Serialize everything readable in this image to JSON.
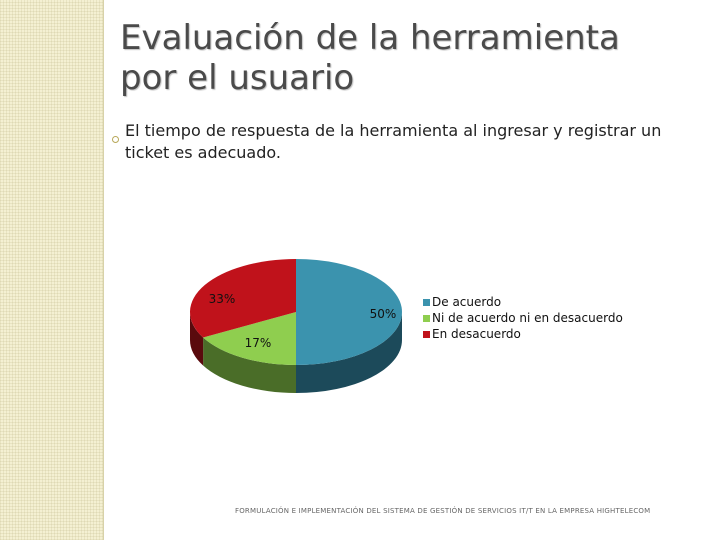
{
  "slide": {
    "title": "Evaluación de la herramienta por el usuario",
    "subtitle": "El tiempo de respuesta de la herramienta al ingresar y registrar un ticket es adecuado.",
    "footer": "FORMULACIÓN E IMPLEMENTACIÓN DEL SISTEMA DE GESTIÓN DE SERVICIOS IT/T EN LA EMPRESA HIGHTELECOM"
  },
  "chart_data": {
    "type": "pie",
    "style": "3d",
    "series": [
      {
        "categories": [
          "De acuerdo",
          "Ni de acuerdo ni en desacuerdo",
          "En desacuerdo"
        ],
        "values": [
          50,
          17,
          33
        ],
        "labels": [
          "50%",
          "17%",
          "33%"
        ],
        "colors": [
          "#3b93ae",
          "#8fce4f",
          "#c0121b"
        ],
        "side_colors": [
          "#1c4a5a",
          "#4a6d28",
          "#5a0a0d"
        ]
      }
    ],
    "legend": {
      "position": "right",
      "entries": [
        "De acuerdo",
        "Ni de acuerdo ni en desacuerdo",
        "En desacuerdo"
      ]
    }
  }
}
